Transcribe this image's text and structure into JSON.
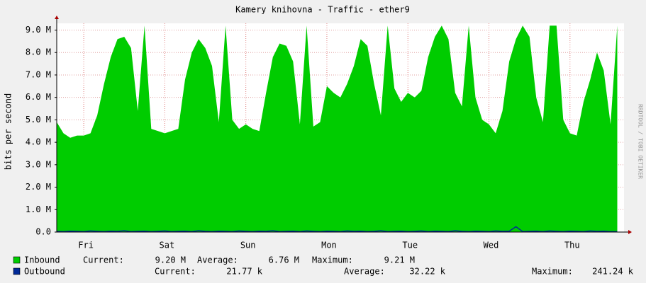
{
  "chart_data": {
    "type": "area",
    "title": "Kamery knihovna - Traffic - ether9",
    "y_label": "bits per second",
    "side_note": "RRDTOOL / TOBI OETIKER",
    "categories": [
      null,
      null,
      null,
      null,
      "Fri",
      null,
      null,
      null,
      null,
      null,
      null,
      null,
      null,
      null,
      null,
      null,
      "Sat",
      null,
      null,
      null,
      null,
      null,
      null,
      null,
      null,
      null,
      null,
      null,
      "Sun",
      null,
      null,
      null,
      null,
      null,
      null,
      null,
      null,
      null,
      null,
      null,
      "Mon",
      null,
      null,
      null,
      null,
      null,
      null,
      null,
      null,
      null,
      null,
      null,
      "Tue",
      null,
      null,
      null,
      null,
      null,
      null,
      null,
      null,
      null,
      null,
      null,
      "Wed",
      null,
      null,
      null,
      null,
      null,
      null,
      null,
      null,
      null,
      null,
      null,
      "Thu",
      null,
      null,
      null,
      null,
      null,
      null,
      null
    ],
    "ylim": [
      0,
      9.3
    ],
    "yticks": [
      {
        "value": 0,
        "label": "0.0"
      },
      {
        "value": 1,
        "label": "1.0 M"
      },
      {
        "value": 2,
        "label": "2.0 M"
      },
      {
        "value": 3,
        "label": "3.0 M"
      },
      {
        "value": 4,
        "label": "4.0 M"
      },
      {
        "value": 5,
        "label": "5.0 M"
      },
      {
        "value": 6,
        "label": "6.0 M"
      },
      {
        "value": 7,
        "label": "7.0 M"
      },
      {
        "value": 8,
        "label": "8.0 M"
      },
      {
        "value": 9,
        "label": "9.0 M"
      }
    ],
    "grid": true,
    "series": [
      {
        "name": "Inbound",
        "color": "#00cc00",
        "values": [
          4.9,
          4.4,
          4.2,
          4.3,
          4.3,
          4.4,
          5.2,
          6.6,
          7.8,
          8.6,
          8.7,
          8.2,
          5.4,
          9.2,
          4.6,
          4.5,
          4.4,
          4.5,
          4.6,
          6.8,
          8.0,
          8.6,
          8.2,
          7.4,
          4.9,
          9.2,
          5.0,
          4.6,
          4.8,
          4.6,
          4.5,
          6.2,
          7.8,
          8.4,
          8.3,
          7.6,
          4.8,
          9.2,
          4.7,
          4.9,
          6.5,
          6.2,
          6.0,
          6.6,
          7.4,
          8.6,
          8.3,
          6.6,
          5.2,
          9.2,
          6.4,
          5.8,
          6.2,
          6.0,
          6.3,
          7.8,
          8.7,
          9.2,
          8.6,
          6.2,
          5.6,
          9.2,
          6.0,
          5.0,
          4.8,
          4.4,
          5.4,
          7.6,
          8.6,
          9.2,
          8.7,
          6.0,
          4.9,
          9.2,
          9.2,
          5.0,
          4.4,
          4.3,
          5.8,
          6.8,
          8.0,
          7.2,
          4.8,
          9.2
        ],
        "stats": [
          {
            "label": "Current:",
            "value": "9.20 M"
          },
          {
            "label": "Average:",
            "value": "6.76 M"
          },
          {
            "label": "Maximum:",
            "value": "9.21 M"
          }
        ]
      },
      {
        "name": "Outbound",
        "color": "#002a97",
        "values": [
          0.03,
          0.02,
          0.04,
          0.03,
          0.02,
          0.05,
          0.03,
          0.02,
          0.04,
          0.03,
          0.06,
          0.02,
          0.03,
          0.04,
          0.02,
          0.03,
          0.05,
          0.02,
          0.03,
          0.04,
          0.02,
          0.06,
          0.03,
          0.02,
          0.04,
          0.03,
          0.02,
          0.05,
          0.03,
          0.02,
          0.04,
          0.03,
          0.06,
          0.02,
          0.03,
          0.04,
          0.02,
          0.05,
          0.03,
          0.02,
          0.04,
          0.03,
          0.02,
          0.05,
          0.03,
          0.04,
          0.02,
          0.03,
          0.06,
          0.02,
          0.03,
          0.04,
          0.02,
          0.03,
          0.05,
          0.02,
          0.04,
          0.03,
          0.02,
          0.06,
          0.03,
          0.02,
          0.04,
          0.03,
          0.02,
          0.05,
          0.03,
          0.04,
          0.24,
          0.02,
          0.03,
          0.04,
          0.02,
          0.05,
          0.03,
          0.02,
          0.04,
          0.03,
          0.02,
          0.05,
          0.03,
          0.04,
          0.02,
          0.02
        ],
        "stats": [
          {
            "label": "Current:",
            "value": "21.77 k"
          },
          {
            "label": "Average:",
            "value": "32.22 k"
          },
          {
            "label": "Maximum:",
            "value": "241.24 k"
          }
        ]
      }
    ]
  }
}
